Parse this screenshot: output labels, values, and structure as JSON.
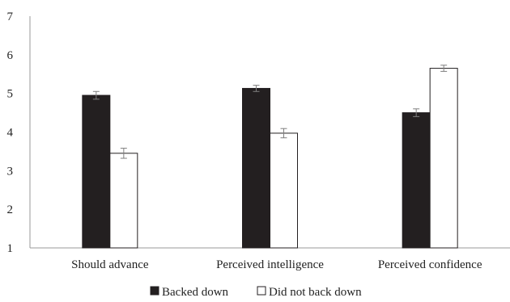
{
  "chart_data": {
    "type": "bar",
    "title": "",
    "xlabel": "",
    "ylabel": "",
    "ylim": [
      1,
      7
    ],
    "yticks": [
      "1",
      "2",
      "3",
      "4",
      "5",
      "6",
      "7"
    ],
    "categories": [
      "Should advance",
      "Perceived intelligence",
      "Perceived confidence"
    ],
    "series": [
      {
        "name": "Backed down",
        "values": [
          4.95,
          5.13,
          4.5
        ],
        "errors": [
          0.1,
          0.08,
          0.1
        ],
        "color": "#231f20"
      },
      {
        "name": "Did not back down",
        "values": [
          3.45,
          3.97,
          5.65
        ],
        "errors": [
          0.13,
          0.12,
          0.08
        ],
        "color": "#ffffff"
      }
    ],
    "legend": "bottom",
    "grid": false,
    "error_bar_color": "#7f7f7f"
  }
}
